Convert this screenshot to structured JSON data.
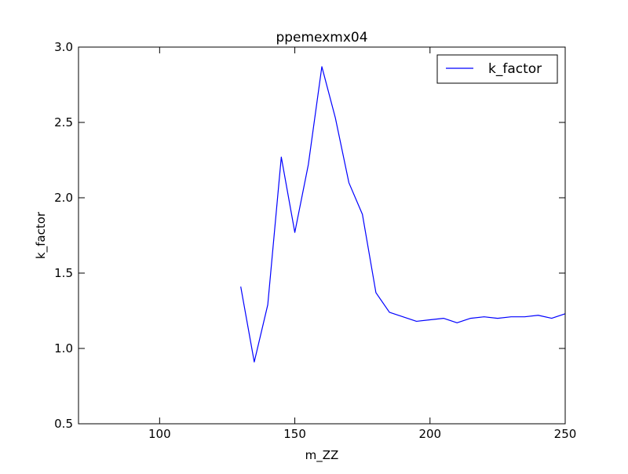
{
  "chart_data": {
    "type": "line",
    "title": "ppemexmx04",
    "xlabel": "m_ZZ",
    "ylabel": "k_factor",
    "xlim": [
      70,
      250
    ],
    "ylim": [
      0.5,
      3.0
    ],
    "xticks": [
      100,
      150,
      200,
      250
    ],
    "xtick_labels": [
      "100",
      "150",
      "200",
      "250"
    ],
    "yticks": [
      0.5,
      1.0,
      1.5,
      2.0,
      2.5,
      3.0
    ],
    "ytick_labels": [
      "0.5",
      "1.0",
      "1.5",
      "2.0",
      "2.5",
      "3.0"
    ],
    "grid": false,
    "legend_position": "top-right",
    "series": [
      {
        "name": "k_factor",
        "color": "#0000ff",
        "x": [
          130,
          135,
          140,
          145,
          150,
          155,
          160,
          165,
          170,
          175,
          180,
          185,
          190,
          195,
          200,
          205,
          210,
          215,
          220,
          225,
          230,
          235,
          240,
          245,
          250
        ],
        "y": [
          1.41,
          0.91,
          1.29,
          2.27,
          1.77,
          2.22,
          2.87,
          2.53,
          2.1,
          1.89,
          1.37,
          1.24,
          1.21,
          1.18,
          1.19,
          1.2,
          1.17,
          1.2,
          1.21,
          1.2,
          1.21,
          1.21,
          1.22,
          1.2,
          1.23
        ]
      }
    ]
  }
}
